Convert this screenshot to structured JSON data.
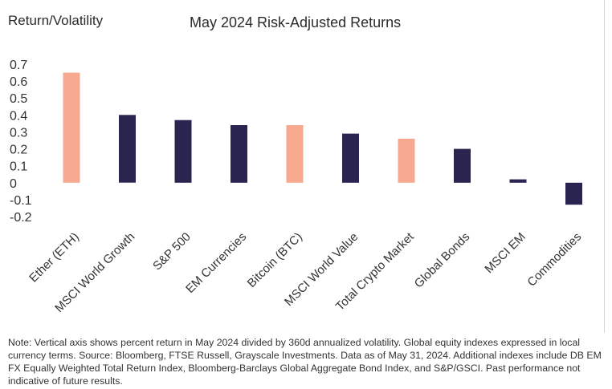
{
  "chart_data": {
    "type": "bar",
    "title": "May 2024 Risk-Adjusted Returns",
    "ylabel": "Return/Volatility",
    "xlabel": "",
    "categories": [
      "Ether (ETH)",
      "MSCI World Growth",
      "S&P 500",
      "EM Currencies",
      "Bitcoin (BTC)",
      "MSCI World Value",
      "Total Crypto Market",
      "Global Bonds",
      "MSCI EM",
      "Commodities"
    ],
    "values": [
      0.65,
      0.4,
      0.37,
      0.34,
      0.34,
      0.29,
      0.26,
      0.2,
      0.02,
      -0.13
    ],
    "bar_colors": [
      "#f6a98f",
      "#2a2550",
      "#2a2550",
      "#2a2550",
      "#f6a98f",
      "#2a2550",
      "#f6a98f",
      "#2a2550",
      "#2a2550",
      "#2a2550"
    ],
    "yticks": [
      "0.7",
      "0.6",
      "0.5",
      "0.4",
      "0.3",
      "0.2",
      "0.1",
      "0",
      "-0.1",
      "-0.2"
    ],
    "ylim": [
      -0.2,
      0.7
    ],
    "grid": false,
    "legend": "none"
  },
  "note": "Note: Vertical axis shows percent return in May 2024 divided by 360d annualized volatility. Global equity indexes expressed in local currency terms. Source: Bloomberg, FTSE Russell, Grayscale Investments. Data as of May 31, 2024. Additional indexes include DB EM FX Equally Weighted Total Return Index, Bloomberg-Barclays Global Aggregate Bond Index, and S&P/GSCI. Past performance not indicative of future results."
}
